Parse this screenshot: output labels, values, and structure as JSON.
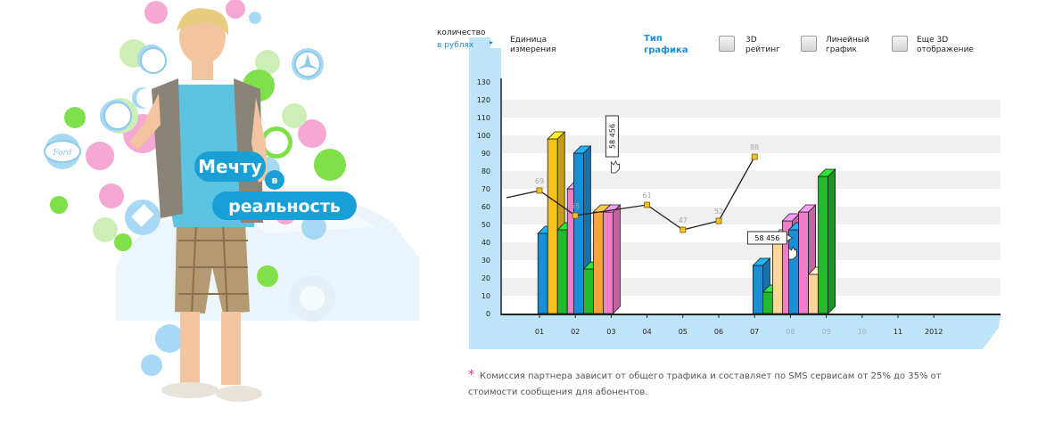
{
  "hero": {
    "slogan_line1": "Мечту",
    "slogan_line2": "в",
    "slogan_line3": "реальность",
    "logo_text": "Ford"
  },
  "controls": {
    "unit_option_1": "количество",
    "unit_option_2": "в рублях",
    "unit_label_line1": "Единица",
    "unit_label_line2": "измерения",
    "type_label_line1": "Тип",
    "type_label_line2": "графика",
    "option_3d_rating_line1": "3D",
    "option_3d_rating_line2": "рейтинг",
    "option_line_line1": "Линейный",
    "option_line_line2": "график",
    "option_3d_view_line1": "Еще 3D",
    "option_3d_view_line2": "отображение"
  },
  "footnote": {
    "star": "*",
    "text_line1": "Комиссия партнера зависит от общего трафика и составляет по SMS сервисам от 25% до 35% от",
    "text_line2": "стоимости сообщения для абонентов."
  },
  "colors": {
    "blue": "#1a8fd6",
    "yellow": "#f7c21b",
    "green": "#22b92c",
    "pink": "#f07ec8",
    "peach": "#fcd79a",
    "orange": "#f7a23a",
    "panel": "#bfe3f7"
  },
  "chart_data": {
    "type": "line",
    "categories": [
      "01",
      "02",
      "03",
      "04",
      "05",
      "06",
      "07",
      "08",
      "09",
      "10",
      "11",
      "2012"
    ],
    "ylim": [
      0,
      130
    ],
    "yticks": [
      0,
      10,
      20,
      30,
      40,
      50,
      60,
      70,
      80,
      90,
      100,
      110,
      120,
      130
    ],
    "grid": true,
    "series": [
      {
        "values": [
          69,
          55,
          null,
          61,
          47,
          52,
          88,
          null,
          null,
          null,
          null,
          null
        ]
      }
    ],
    "line_labels": [
      "69",
      "55",
      "61",
      "47",
      "52",
      "88"
    ],
    "line_start_value": 65,
    "bar_groups": [
      {
        "category": "02",
        "bars": [
          {
            "color": "blue",
            "value": 45
          },
          {
            "color": "yellow",
            "value": 98
          },
          {
            "color": "green",
            "value": 47
          },
          {
            "color": "pink",
            "value": 70
          }
        ]
      },
      {
        "category": "03",
        "bars": [
          {
            "color": "blue",
            "value": 90
          },
          {
            "color": "green",
            "value": 25
          },
          {
            "color": "orange",
            "value": 57
          },
          {
            "color": "pink",
            "value": 57
          }
        ]
      },
      {
        "category": "08",
        "bars": [
          {
            "color": "blue",
            "value": 27
          },
          {
            "color": "green",
            "value": 12
          },
          {
            "color": "peach",
            "value": 43
          },
          {
            "color": "pink",
            "value": 52
          }
        ]
      },
      {
        "category": "09",
        "bars": [
          {
            "color": "blue",
            "value": 47
          },
          {
            "color": "pink",
            "value": 57
          },
          {
            "color": "peach",
            "value": 22
          },
          {
            "color": "green",
            "value": 77
          }
        ]
      }
    ],
    "tooltips": [
      {
        "text": "58 456",
        "category": "03",
        "orientation": "vertical"
      },
      {
        "text": "58 456",
        "category": "08",
        "orientation": "horizontal"
      }
    ],
    "highlighted_categories": [
      "08",
      "09",
      "10"
    ]
  }
}
